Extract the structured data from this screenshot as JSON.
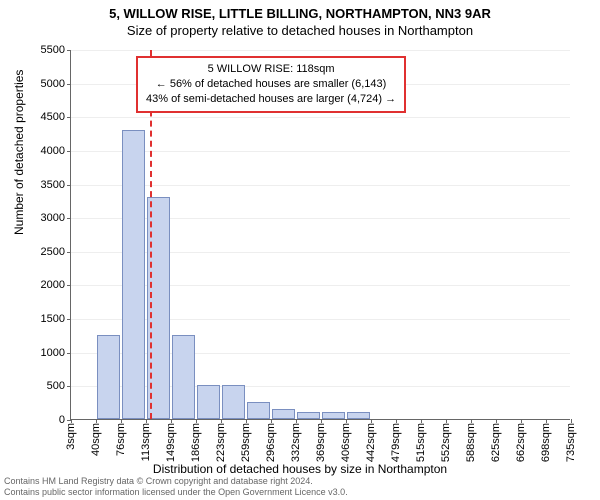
{
  "title": {
    "line1": "5, WILLOW RISE, LITTLE BILLING, NORTHAMPTON, NN3 9AR",
    "line2": "Size of property relative to detached houses in Northampton",
    "fontsize": 13,
    "color": "#000000"
  },
  "chart": {
    "type": "histogram",
    "background_color": "#ffffff",
    "grid_color": "#eeeeee",
    "axis_color": "#666666",
    "bar_fill": "#c8d4ee",
    "bar_stroke": "#7a8fc0",
    "ylabel": "Number of detached properties",
    "xlabel": "Distribution of detached houses by size in Northampton",
    "label_fontsize": 12,
    "tick_fontsize": 11,
    "ylim": [
      0,
      5500
    ],
    "ytick_step": 500,
    "xticks": [
      "3sqm",
      "40sqm",
      "76sqm",
      "113sqm",
      "149sqm",
      "186sqm",
      "223sqm",
      "259sqm",
      "296sqm",
      "332sqm",
      "369sqm",
      "406sqm",
      "442sqm",
      "479sqm",
      "515sqm",
      "552sqm",
      "588sqm",
      "625sqm",
      "662sqm",
      "698sqm",
      "735sqm"
    ],
    "bars": [
      {
        "x_index": 1,
        "value": 1250
      },
      {
        "x_index": 2,
        "value": 4300
      },
      {
        "x_index": 3,
        "value": 3300
      },
      {
        "x_index": 4,
        "value": 1250
      },
      {
        "x_index": 5,
        "value": 500
      },
      {
        "x_index": 6,
        "value": 500
      },
      {
        "x_index": 7,
        "value": 250
      },
      {
        "x_index": 8,
        "value": 150
      },
      {
        "x_index": 9,
        "value": 100
      },
      {
        "x_index": 10,
        "value": 100
      },
      {
        "x_index": 11,
        "value": 100
      }
    ],
    "reference_line": {
      "x_value_sqm": 118,
      "color": "#e03030"
    },
    "info_box": {
      "border_color": "#e03030",
      "background": "#ffffff",
      "fontsize": 11,
      "line1": "5 WILLOW RISE: 118sqm",
      "line2": "← 56% of detached houses are smaller (6,143)",
      "line3": "43% of semi-detached houses are larger (4,724) →"
    }
  },
  "footer": {
    "line1": "Contains HM Land Registry data © Crown copyright and database right 2024.",
    "line2": "Contains public sector information licensed under the Open Government Licence v3.0.",
    "fontsize": 9,
    "color": "#666666"
  }
}
